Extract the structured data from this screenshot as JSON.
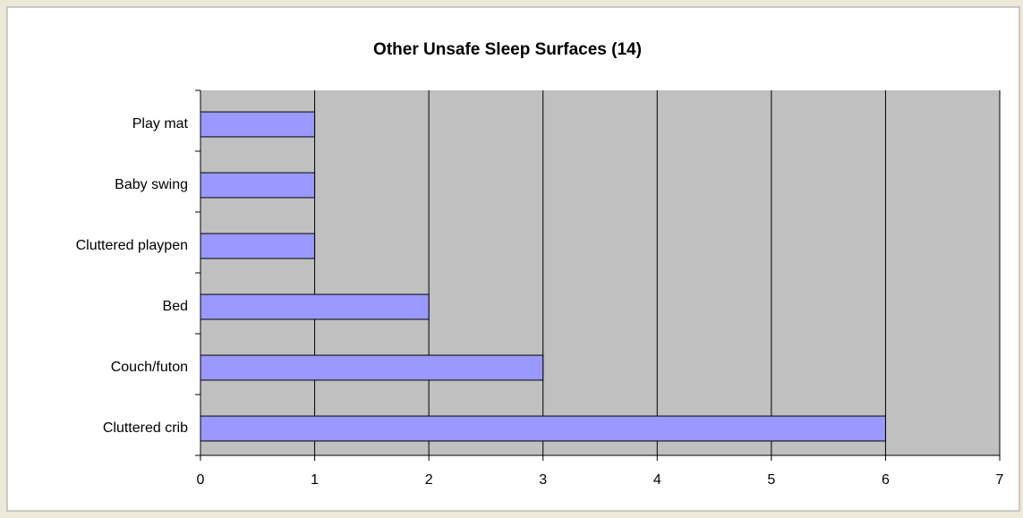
{
  "chart_data": {
    "type": "bar",
    "orientation": "horizontal",
    "title": "Other Unsafe Sleep Surfaces (14)",
    "categories": [
      "Play mat",
      "Baby swing",
      "Cluttered playpen",
      "Bed",
      "Couch/futon",
      "Cluttered crib"
    ],
    "values": [
      1,
      1,
      1,
      2,
      3,
      6
    ],
    "color": "#9999ff",
    "xlim": [
      0,
      7
    ],
    "xticks": [
      0,
      1,
      2,
      3,
      4,
      5,
      6,
      7
    ],
    "grid": true,
    "plot_background": "#c0c0c0"
  }
}
